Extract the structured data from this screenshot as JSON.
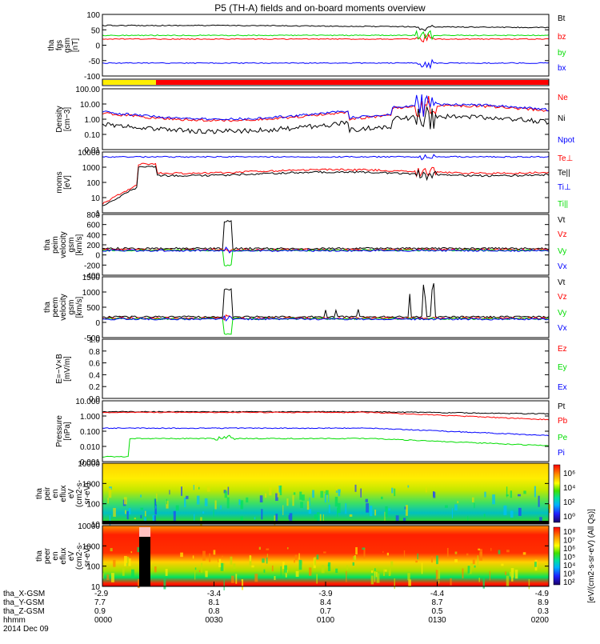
{
  "title": "P5 (TH-A) fields and on-board moments overview",
  "date_label": "2014 Dec 09",
  "colors": {
    "black": "#000000",
    "red": "#ff0000",
    "green": "#00dd00",
    "blue": "#0000ff",
    "yellow": "#ffee00"
  },
  "orbit": {
    "labels": [
      "tha_X-GSM",
      "tha_Y-GSM",
      "tha_Z-GSM",
      "hhmm"
    ],
    "columns": [
      {
        "x": "-2.9",
        "y": "7.7",
        "z": "0.9",
        "t": "0000"
      },
      {
        "x": "-3.4",
        "y": "8.1",
        "z": "0.8",
        "t": "0030"
      },
      {
        "x": "-3.9",
        "y": "8.4",
        "z": "0.7",
        "t": "0100"
      },
      {
        "x": "-4.4",
        "y": "8.7",
        "z": "0.5",
        "t": "0130"
      },
      {
        "x": "-4.9",
        "y": "8.9",
        "z": "0.3",
        "t": "0200"
      }
    ]
  },
  "colorbar": {
    "label": "eV/(cm2-s-sr-eV) (All Qs)",
    "ticks1": [
      "10⁶",
      "10⁴",
      "10²",
      "10⁰"
    ],
    "ticks2": [
      "10⁸",
      "10⁷",
      "10⁶",
      "10⁵",
      "10⁴",
      "10³",
      "10²"
    ]
  },
  "chart_data": [
    {
      "type": "line",
      "id": "fgs",
      "ylabel": [
        "tha",
        "fgs",
        "gsm",
        "[nT]"
      ],
      "ylim": [
        -100,
        100
      ],
      "yticks": [
        "100",
        "50",
        "0",
        "-50",
        "-100"
      ],
      "series": [
        {
          "name": "Bt",
          "color": "#000000"
        },
        {
          "name": "bz",
          "color": "#ff0000"
        },
        {
          "name": "by",
          "color": "#00dd00"
        },
        {
          "name": "bx",
          "color": "#0000ff"
        }
      ]
    },
    {
      "type": "bar",
      "id": "mode_bar",
      "description": "mode indicator",
      "segments": [
        {
          "color": "#ffee00",
          "from": 0.0,
          "to": 0.12
        },
        {
          "color": "#ff0000",
          "from": 0.12,
          "to": 1.0
        }
      ]
    },
    {
      "type": "line",
      "id": "density",
      "log": true,
      "ylabel": [
        "Density",
        "[cm−3]"
      ],
      "ylim": [
        0.01,
        100
      ],
      "yticks": [
        "100.00",
        "10.00",
        "1.00",
        "0.10",
        "0.01"
      ],
      "series": [
        {
          "name": "Ne",
          "color": "#ff0000"
        },
        {
          "name": "Ni",
          "color": "#000000"
        },
        {
          "name": "Npot",
          "color": "#0000ff"
        }
      ]
    },
    {
      "type": "line",
      "id": "temp",
      "log": true,
      "ylabel": [
        "moms",
        "[eV]"
      ],
      "ylim": [
        1,
        10000
      ],
      "yticks": [
        "10000",
        "1000",
        "100",
        "10",
        "1"
      ],
      "series": [
        {
          "name": "Te⊥",
          "color": "#ff0000"
        },
        {
          "name": "Te||",
          "color": "#000000"
        },
        {
          "name": "Ti⊥",
          "color": "#0000ff"
        },
        {
          "name": "Ti||",
          "color": "#00dd00"
        }
      ]
    },
    {
      "type": "line",
      "id": "peim_vel",
      "ylabel": [
        "tha",
        "peim",
        "velocity",
        "gsm",
        "[km/s]"
      ],
      "ylim": [
        -400,
        800
      ],
      "yticks": [
        "800",
        "600",
        "400",
        "200",
        "0",
        "-200",
        "-400"
      ],
      "series": [
        {
          "name": "Vt",
          "color": "#000000"
        },
        {
          "name": "Vz",
          "color": "#ff0000"
        },
        {
          "name": "Vy",
          "color": "#00dd00"
        },
        {
          "name": "Vx",
          "color": "#0000ff"
        }
      ]
    },
    {
      "type": "line",
      "id": "peem_vel",
      "ylabel": [
        "tha",
        "peem",
        "velocity",
        "gsm",
        "[km/s]"
      ],
      "ylim": [
        -500,
        1500
      ],
      "yticks": [
        "1500",
        "1000",
        "500",
        "0",
        "-500"
      ],
      "series": [
        {
          "name": "Vt",
          "color": "#000000"
        },
        {
          "name": "Vz",
          "color": "#ff0000"
        },
        {
          "name": "Vy",
          "color": "#00dd00"
        },
        {
          "name": "Vx",
          "color": "#0000ff"
        }
      ]
    },
    {
      "type": "line",
      "id": "efield",
      "ylabel": [
        "E=−V×B",
        "[mV/m]"
      ],
      "ylim": [
        0,
        1.0
      ],
      "yticks": [
        "1.0",
        "0.8",
        "0.6",
        "0.4",
        "0.2",
        "0.0"
      ],
      "series": [
        {
          "name": "Ez",
          "color": "#ff0000"
        },
        {
          "name": "Ey",
          "color": "#00dd00"
        },
        {
          "name": "Ex",
          "color": "#0000ff"
        }
      ]
    },
    {
      "type": "line",
      "id": "pressure",
      "log": true,
      "ylabel": [
        "Pressure",
        "[nPa]"
      ],
      "ylim": [
        0.001,
        10
      ],
      "yticks": [
        "10.000",
        "1.000",
        "0.100",
        "0.010",
        "0.001"
      ],
      "series": [
        {
          "name": "Pt",
          "color": "#000000"
        },
        {
          "name": "Pb",
          "color": "#ff0000"
        },
        {
          "name": "Pe",
          "color": "#00dd00"
        },
        {
          "name": "Pi",
          "color": "#0000ff"
        }
      ]
    },
    {
      "type": "heatmap",
      "id": "peir",
      "ylabel": [
        "tha",
        "peir",
        "en",
        "eflux",
        "eV",
        "(cm2-s-",
        "sr-eV)"
      ],
      "log": true,
      "yticks": [
        "10000",
        "1000",
        "100",
        "10"
      ]
    },
    {
      "type": "heatmap",
      "id": "peer",
      "ylabel": [
        "tha",
        "peer",
        "en",
        "eflux",
        "eV",
        "(cm2-s-",
        "sr-eV)"
      ],
      "log": true,
      "yticks": [
        "10000",
        "1000",
        "100",
        "10"
      ]
    }
  ]
}
